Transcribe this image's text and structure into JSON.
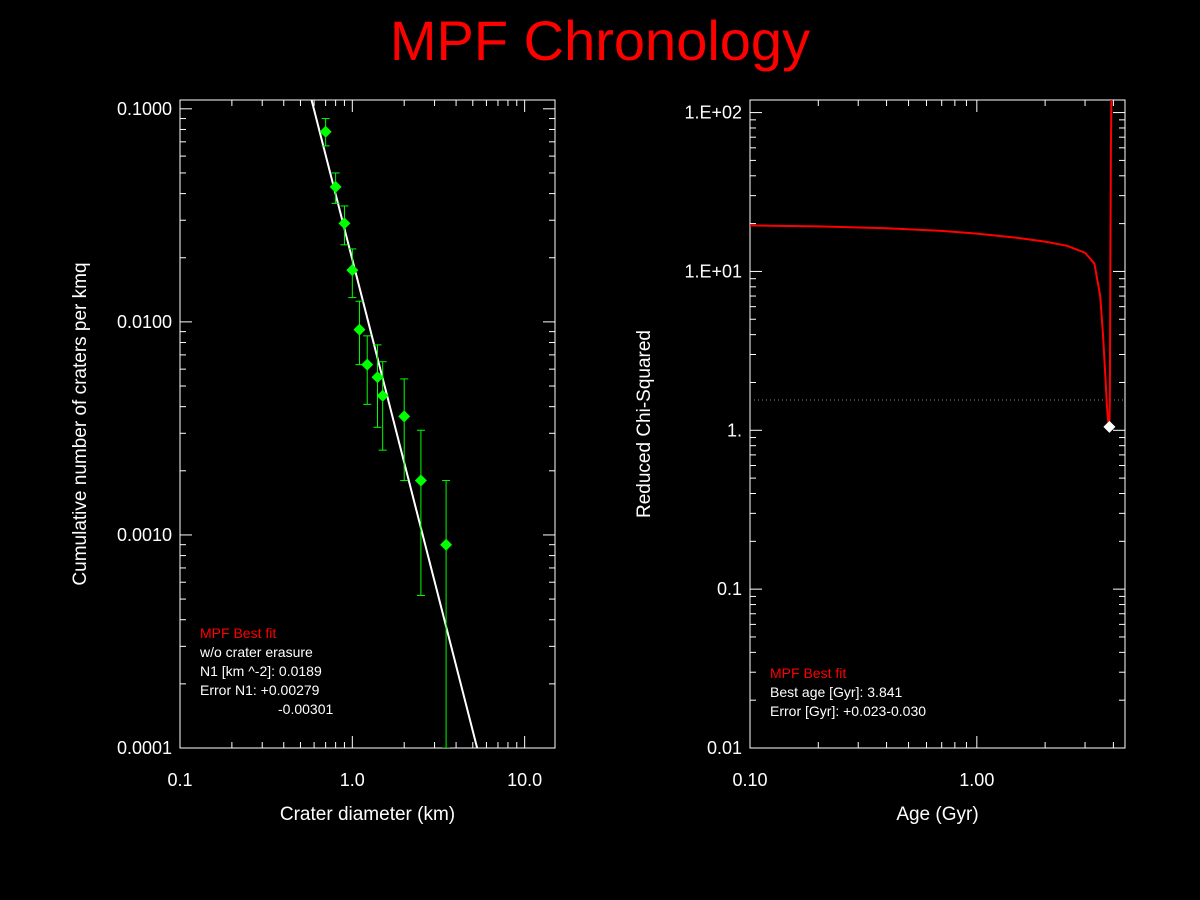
{
  "title": "MPF Chronology",
  "colors": {
    "background": "#000000",
    "title": "#ff0000",
    "axes": "#ffffff",
    "data_points": "#00ff00",
    "fit_line": "#ffffff",
    "chi_curve": "#ff0000",
    "annotation_highlight": "#ff0000",
    "reference_line": "#888888"
  },
  "chart_data": [
    {
      "type": "scatter",
      "xlabel": "Crater diameter (km)",
      "ylabel": "Cumulative number of craters per kmq",
      "x_scale": "log",
      "y_scale": "log",
      "xlim": [
        0.1,
        15
      ],
      "ylim": [
        0.0001,
        0.11
      ],
      "x_tick_labels": [
        {
          "v": 0.1,
          "label": "0.1"
        },
        {
          "v": 1,
          "label": "1.0"
        },
        {
          "v": 10,
          "label": "10.0"
        }
      ],
      "y_tick_labels": [
        {
          "v": 0.1,
          "label": "0.1000"
        },
        {
          "v": 0.01,
          "label": "0.0100"
        },
        {
          "v": 0.001,
          "label": "0.0010"
        },
        {
          "v": 0.0001,
          "label": "0.0001"
        }
      ],
      "points": [
        {
          "x": 0.7,
          "y": 0.078,
          "ylo": 0.067,
          "yhi": 0.09
        },
        {
          "x": 0.8,
          "y": 0.043,
          "ylo": 0.036,
          "yhi": 0.05
        },
        {
          "x": 0.9,
          "y": 0.029,
          "ylo": 0.023,
          "yhi": 0.035
        },
        {
          "x": 1.0,
          "y": 0.0175,
          "ylo": 0.013,
          "yhi": 0.022
        },
        {
          "x": 1.1,
          "y": 0.0092,
          "ylo": 0.0063,
          "yhi": 0.0125
        },
        {
          "x": 1.22,
          "y": 0.0063,
          "ylo": 0.0041,
          "yhi": 0.0086
        },
        {
          "x": 1.4,
          "y": 0.0055,
          "ylo": 0.0032,
          "yhi": 0.0078
        },
        {
          "x": 1.5,
          "y": 0.0045,
          "ylo": 0.0025,
          "yhi": 0.0065
        },
        {
          "x": 2.0,
          "y": 0.0036,
          "ylo": 0.0018,
          "yhi": 0.0054
        },
        {
          "x": 2.5,
          "y": 0.0018,
          "ylo": 0.00052,
          "yhi": 0.0031
        },
        {
          "x": 3.5,
          "y": 0.0009,
          "ylo": 0.0001,
          "yhi": 0.0018
        }
      ],
      "fit_line": [
        {
          "x": 0.58,
          "y": 0.11
        },
        {
          "x": 5.3,
          "y": 0.0001
        }
      ],
      "annotation": {
        "heading": "MPF Best fit",
        "lines": [
          "w/o crater erasure",
          "N1 [km ^-2]: 0.0189",
          "Error N1: +0.00279",
          "-0.00301"
        ]
      }
    },
    {
      "type": "line",
      "xlabel": "Age (Gyr)",
      "ylabel": "Reduced Chi-Squared",
      "x_scale": "log",
      "y_scale": "log",
      "xlim": [
        0.1,
        4.5
      ],
      "ylim": [
        0.01,
        120
      ],
      "x_tick_labels": [
        {
          "v": 0.1,
          "label": "0.10"
        },
        {
          "v": 1,
          "label": "1.00"
        }
      ],
      "y_tick_labels": [
        {
          "v": 100,
          "label": "1.E+02"
        },
        {
          "v": 10,
          "label": "1.E+01"
        },
        {
          "v": 1,
          "label": "1."
        },
        {
          "v": 0.1,
          "label": "0.1"
        },
        {
          "v": 0.01,
          "label": "0.01"
        }
      ],
      "series": [
        {
          "x": [
            0.1,
            0.2,
            0.4,
            0.7,
            1.0,
            1.5,
            2.0,
            2.5,
            3.0,
            3.3,
            3.5,
            3.6,
            3.7,
            3.75,
            3.8,
            3.82,
            3.841,
            3.86,
            3.88,
            3.9,
            3.92
          ],
          "y": [
            19.5,
            19.2,
            18.7,
            18.0,
            17.3,
            16.3,
            15.4,
            14.5,
            13.1,
            11.2,
            7.0,
            4.0,
            2.0,
            1.4,
            1.12,
            1.07,
            1.05,
            1.8,
            12.0,
            60.0,
            120.0
          ]
        }
      ],
      "reference_y": 1.55,
      "best_point": {
        "x": 3.841,
        "y": 1.05
      },
      "annotation": {
        "heading": "MPF Best fit",
        "lines": [
          "Best age [Gyr]: 3.841",
          "Error [Gyr]: +0.023-0.030"
        ]
      }
    }
  ]
}
